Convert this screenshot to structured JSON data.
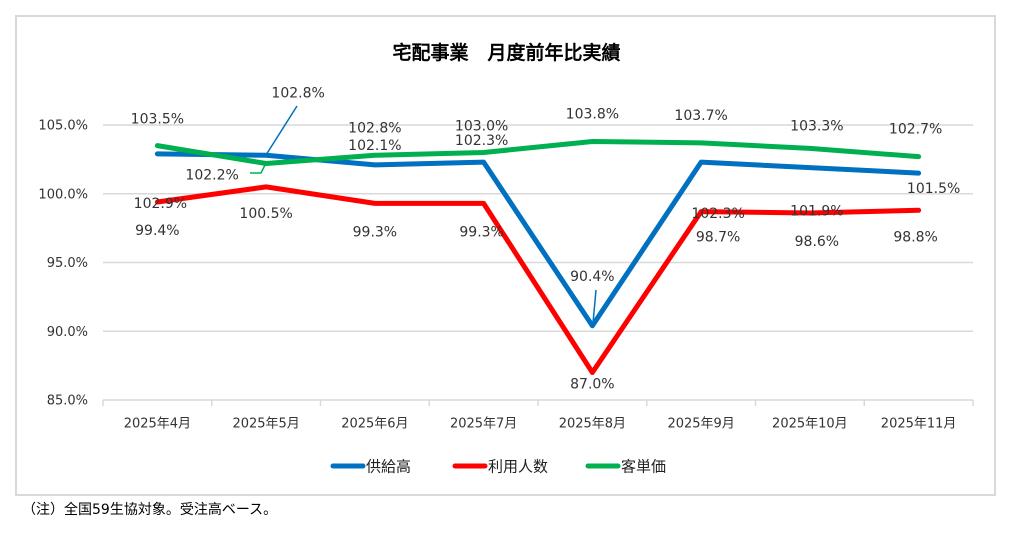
{
  "chart_data": {
    "type": "line",
    "title": "宅配事業　月度前年比実績",
    "categories": [
      "2025年4月",
      "2025年5月",
      "2025年6月",
      "2025年7月",
      "2025年8月",
      "2025年9月",
      "2025年10月",
      "2025年11月"
    ],
    "yticks": [
      "85.0%",
      "90.0%",
      "95.0%",
      "100.0%",
      "105.0%"
    ],
    "ylim": [
      85,
      105
    ],
    "grid": true,
    "legend_position": "bottom-right",
    "series": [
      {
        "name": "供給高",
        "color": "#0070C0",
        "values": [
          102.9,
          102.8,
          102.1,
          102.3,
          90.4,
          102.3,
          101.9,
          101.5
        ],
        "labels": [
          "102.9%",
          "102.8%",
          "102.1%",
          "102.3%",
          "90.4%",
          "102.3%",
          "101.9%",
          "101.5%"
        ]
      },
      {
        "name": "利用人数",
        "color": "#FF0000",
        "values": [
          99.4,
          100.5,
          99.3,
          99.3,
          87.0,
          98.7,
          98.6,
          98.8
        ],
        "labels": [
          "99.4%",
          "100.5%",
          "99.3%",
          "99.3%",
          "87.0%",
          "98.7%",
          "98.6%",
          "98.8%"
        ]
      },
      {
        "name": "客単価",
        "color": "#00B050",
        "values": [
          103.5,
          102.2,
          102.8,
          103.0,
          103.8,
          103.7,
          103.3,
          102.7
        ],
        "labels": [
          "103.5%",
          "102.2%",
          "102.8%",
          "103.0%",
          "103.8%",
          "103.7%",
          "103.3%",
          "102.7%"
        ]
      }
    ]
  },
  "note": "（注）全国59生協対象。受注高ベース。"
}
